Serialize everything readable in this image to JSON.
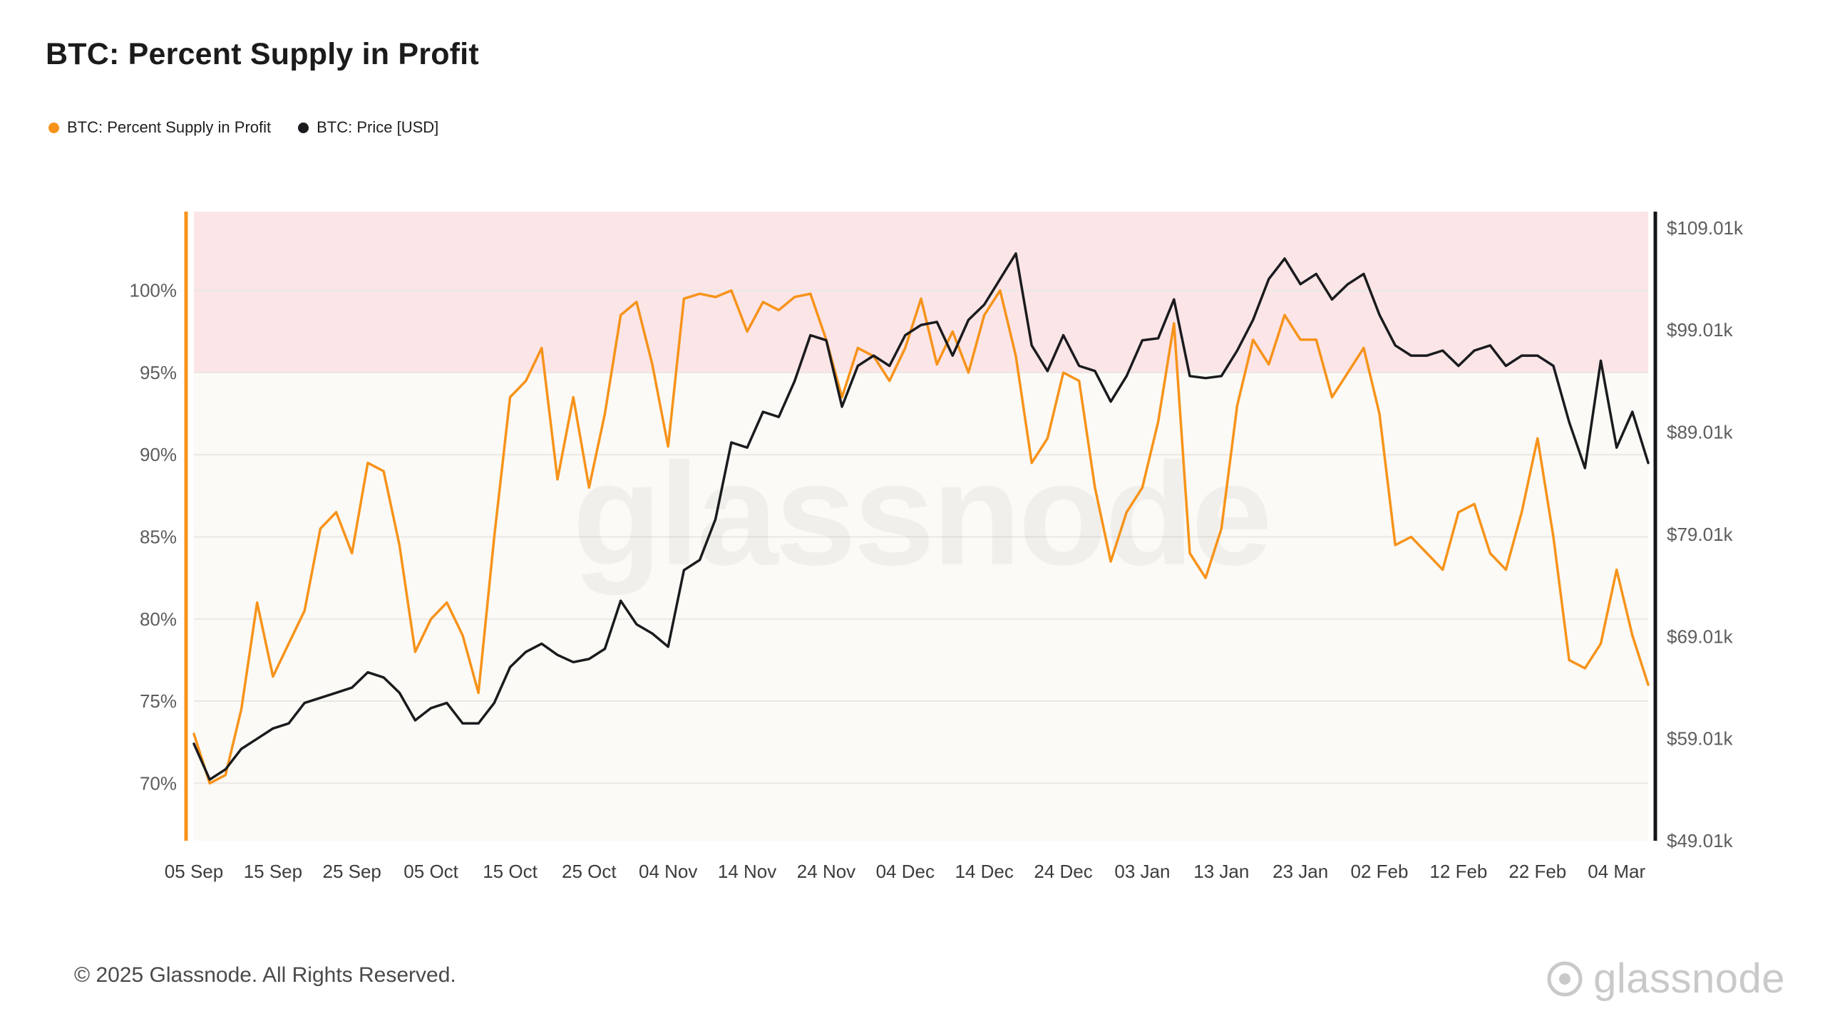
{
  "title": "BTC: Percent Supply in Profit",
  "legend": {
    "items": [
      {
        "label": "BTC: Percent Supply in Profit",
        "color": "#f7931a"
      },
      {
        "label": "BTC: Price [USD]",
        "color": "#1a1b1e"
      }
    ]
  },
  "watermark": {
    "text": "glassnode"
  },
  "footer": {
    "copyright": "© 2025 Glassnode. All Rights Reserved.",
    "brand": "glassnode"
  },
  "chart_data": {
    "type": "line",
    "title": "BTC: Percent Supply in Profit",
    "grid": true,
    "legend_position": "top-left",
    "plot_bg": "#fbfaf6",
    "profit_zone": {
      "from": 95,
      "to_top": true,
      "color": "#fbe5e7"
    },
    "left_axis": {
      "title": "Percent Supply in Profit",
      "min": 66.5,
      "max": 104.8,
      "tick_values": [
        70,
        75,
        80,
        85,
        90,
        95,
        100
      ],
      "tick_labels": [
        "70%",
        "75%",
        "80%",
        "85%",
        "90%",
        "95%",
        "100%"
      ],
      "axis_line_color": "#f7931a"
    },
    "right_axis": {
      "title": "BTC Price USD",
      "min": 49.01,
      "max": 110.6,
      "tick_values": [
        49.01,
        59.01,
        69.01,
        79.01,
        89.01,
        99.01,
        109.01
      ],
      "tick_labels": [
        "$49.01k",
        "$59.01k",
        "$69.01k",
        "$79.01k",
        "$89.01k",
        "$99.01k",
        "$109.01k"
      ],
      "axis_line_color": "#15161a"
    },
    "x": [
      "05 Sep",
      "07 Sep",
      "09 Sep",
      "11 Sep",
      "13 Sep",
      "15 Sep",
      "17 Sep",
      "19 Sep",
      "21 Sep",
      "23 Sep",
      "25 Sep",
      "27 Sep",
      "29 Sep",
      "01 Oct",
      "03 Oct",
      "05 Oct",
      "07 Oct",
      "09 Oct",
      "11 Oct",
      "13 Oct",
      "15 Oct",
      "17 Oct",
      "19 Oct",
      "21 Oct",
      "23 Oct",
      "25 Oct",
      "27 Oct",
      "29 Oct",
      "31 Oct",
      "02 Nov",
      "04 Nov",
      "06 Nov",
      "08 Nov",
      "10 Nov",
      "12 Nov",
      "14 Nov",
      "16 Nov",
      "18 Nov",
      "20 Nov",
      "22 Nov",
      "24 Nov",
      "26 Nov",
      "28 Nov",
      "30 Nov",
      "02 Dec",
      "04 Dec",
      "06 Dec",
      "08 Dec",
      "10 Dec",
      "12 Dec",
      "14 Dec",
      "16 Dec",
      "18 Dec",
      "20 Dec",
      "22 Dec",
      "24 Dec",
      "26 Dec",
      "28 Dec",
      "30 Dec",
      "01 Jan",
      "03 Jan",
      "05 Jan",
      "07 Jan",
      "09 Jan",
      "11 Jan",
      "13 Jan",
      "15 Jan",
      "17 Jan",
      "19 Jan",
      "21 Jan",
      "23 Jan",
      "25 Jan",
      "27 Jan",
      "29 Jan",
      "31 Jan",
      "02 Feb",
      "04 Feb",
      "06 Feb",
      "08 Feb",
      "10 Feb",
      "12 Feb",
      "14 Feb",
      "16 Feb",
      "18 Feb",
      "20 Feb",
      "22 Feb",
      "24 Feb",
      "26 Feb",
      "28 Feb",
      "02 Mar",
      "04 Mar",
      "06 Mar",
      "08 Mar"
    ],
    "x_ticks": [
      "05 Sep",
      "15 Sep",
      "25 Sep",
      "05 Oct",
      "15 Oct",
      "25 Oct",
      "04 Nov",
      "14 Nov",
      "24 Nov",
      "04 Dec",
      "14 Dec",
      "24 Dec",
      "03 Jan",
      "13 Jan",
      "23 Jan",
      "02 Feb",
      "12 Feb",
      "22 Feb",
      "04 Mar"
    ],
    "series": [
      {
        "name": "BTC: Percent Supply in Profit",
        "axis": "left",
        "unit": "%",
        "color": "#f7931a",
        "values": [
          73,
          70,
          70.5,
          74.5,
          81,
          76.5,
          78.5,
          80.5,
          85.5,
          86.5,
          84,
          89.5,
          89,
          84.5,
          78,
          80,
          81,
          79,
          75.5,
          85,
          93.5,
          94.5,
          96.5,
          88.5,
          93.5,
          88,
          92.5,
          98.5,
          99.3,
          95.5,
          90.5,
          99.5,
          99.8,
          99.6,
          100,
          97.5,
          99.3,
          98.8,
          99.6,
          99.8,
          97,
          93.5,
          96.5,
          96,
          94.5,
          96.5,
          99.5,
          95.5,
          97.5,
          95,
          98.5,
          100,
          96,
          89.5,
          91,
          95,
          94.5,
          88,
          83.5,
          86.5,
          88,
          92,
          98,
          84,
          82.5,
          85.5,
          93,
          97,
          95.5,
          98.5,
          97,
          97,
          93.5,
          95,
          96.5,
          92.5,
          84.5,
          85,
          84,
          83,
          86.5,
          87,
          84,
          83,
          86.5,
          91,
          85,
          77.5,
          77,
          78.5,
          83,
          79,
          76
        ]
      },
      {
        "name": "BTC: Price [USD]",
        "axis": "right",
        "unit": "$k",
        "color": "#1a1b1e",
        "values": [
          58.5,
          55,
          56,
          58,
          59,
          60,
          60.5,
          62.5,
          63,
          63.5,
          64,
          65.5,
          65,
          63.5,
          60.8,
          62,
          62.5,
          60.5,
          60.5,
          62.5,
          66,
          67.5,
          68.3,
          67.2,
          66.5,
          66.8,
          67.8,
          72.5,
          70.2,
          69.3,
          68,
          75.5,
          76.5,
          80.5,
          88,
          87.5,
          91,
          90.5,
          94,
          98.5,
          98,
          91.5,
          95.5,
          96.5,
          95.5,
          98.5,
          99.5,
          99.8,
          96.5,
          100,
          101.5,
          104,
          106.5,
          97.5,
          95,
          98.5,
          95.5,
          95,
          92,
          94.5,
          98,
          98.2,
          102,
          94.5,
          94.3,
          94.5,
          97,
          100,
          104,
          106,
          103.5,
          104.5,
          102,
          103.5,
          104.5,
          100.5,
          97.5,
          96.5,
          96.5,
          97,
          95.5,
          97,
          97.5,
          95.5,
          96.5,
          96.5,
          95.5,
          90,
          85.5,
          96,
          87.5,
          91,
          86
        ]
      }
    ]
  }
}
